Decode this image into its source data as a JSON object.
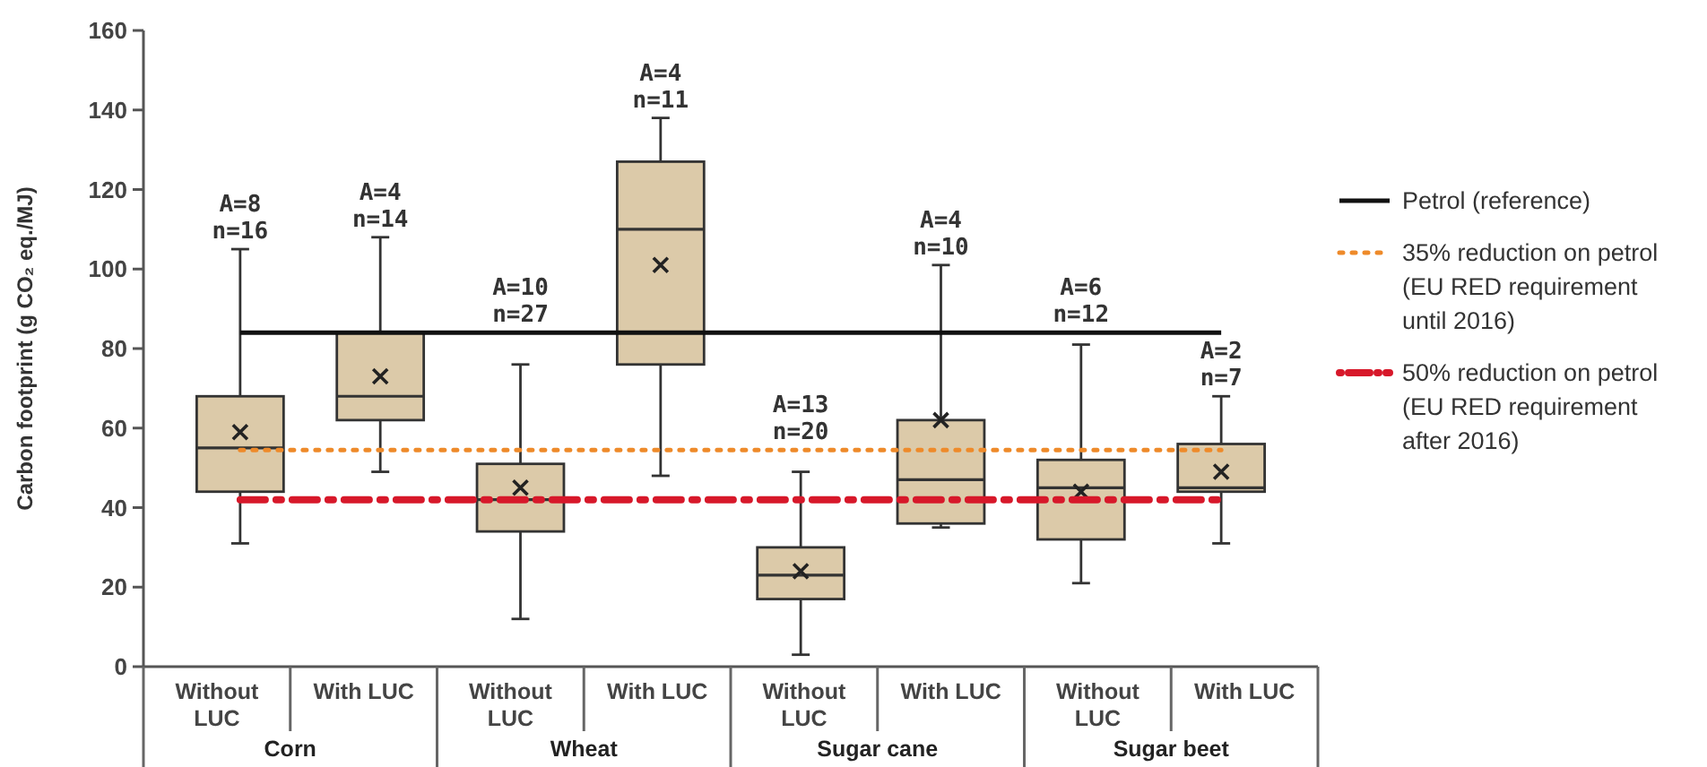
{
  "chart_data": {
    "type": "box",
    "ylabel": "Carbon footprint (g CO₂ eq./MJ)",
    "categories": [
      "Without LUC",
      "With LUC",
      "Without LUC",
      "With LUC",
      "Without LUC",
      "With LUC",
      "Without LUC",
      "With LUC"
    ],
    "color": "#dccaa9",
    "boxes": [
      {
        "low": 31,
        "q1": 44,
        "median": 55,
        "q3": 68,
        "high": 105,
        "mean": 59
      },
      {
        "low": 49,
        "q1": 62,
        "median": 68,
        "q3": 84,
        "high": 108,
        "mean": 73
      },
      {
        "low": 12,
        "q1": 34,
        "median": 42,
        "q3": 51,
        "high": 76,
        "mean": 45
      },
      {
        "low": 48,
        "q1": 76,
        "median": 110,
        "q3": 127,
        "high": 138,
        "mean": 101
      },
      {
        "low": 3,
        "q1": 17,
        "median": 23,
        "q3": 30,
        "high": 49,
        "mean": 24
      },
      {
        "low": 35,
        "q1": 36,
        "median": 47,
        "q3": 62,
        "high": 101,
        "mean": 62
      },
      {
        "low": 21,
        "q1": 32,
        "median": 45,
        "q3": 52,
        "high": 81,
        "mean": 44
      },
      {
        "low": 31,
        "q1": 44,
        "median": 45,
        "q3": 56,
        "high": 68,
        "mean": 49
      }
    ],
    "ylim": [
      0,
      160
    ],
    "yticks": [
      0,
      20,
      40,
      60,
      80,
      100,
      120,
      140,
      160
    ],
    "grid": false,
    "legend": "right",
    "marker": "cross",
    "ref_lines": [
      {
        "axis": "y",
        "value": 84,
        "label": "Petrol (reference)",
        "color": "#111111",
        "line_style": "solid"
      },
      {
        "axis": "y",
        "value": 54.5,
        "label": "35% reduction on petrol (EU RED requirement until 2016)",
        "color": "#ee8a2a",
        "line_style": "dotted"
      },
      {
        "axis": "y",
        "value": 42,
        "label": "50% reduction on petrol (EU RED requirement after 2016)",
        "color": "#d7182a",
        "line_style": "dashdot"
      }
    ],
    "annotations": [
      {
        "text": "A=8\nn=16",
        "y": 105
      },
      {
        "text": "A=4\nn=14",
        "y": 108
      },
      {
        "text": "A=10\nn=27",
        "y": 84
      },
      {
        "text": "A=4\nn=11",
        "y": 138
      },
      {
        "text": "A=13\nn=20",
        "y": 54.5
      },
      {
        "text": "A=4\nn=10",
        "y": 101
      },
      {
        "text": "A=6\nn=12",
        "y": 84
      },
      {
        "text": "A=2\nn=7",
        "y": 68
      },
      "Corn",
      "Wheat",
      "Sugar cane",
      "Sugar beet"
    ]
  }
}
